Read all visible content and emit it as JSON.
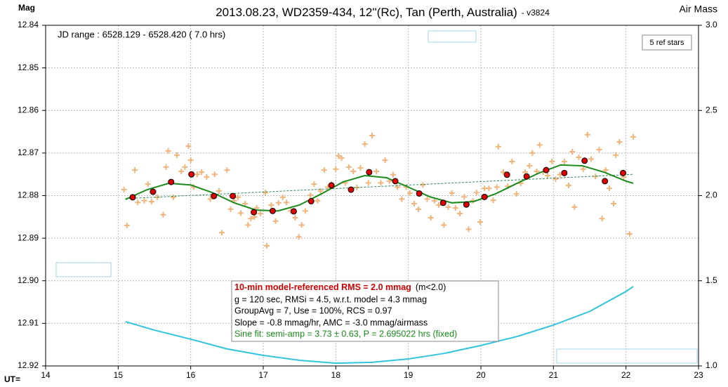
{
  "chart_data": {
    "type": "scatter",
    "title": "2013.08.23, WD2359-434, 12''(Rc), Tan (Perth, Australia)",
    "subtitle": "- v3824",
    "y_label": "Mag",
    "y2_label": "Air Mass",
    "x_label": "UT=",
    "xlim": [
      14,
      23
    ],
    "xticks": [
      14,
      15,
      16,
      17,
      18,
      19,
      20,
      21,
      22,
      23
    ],
    "ylim": [
      12.84,
      12.92
    ],
    "y_inverted": true,
    "yticks": [
      12.84,
      12.85,
      12.86,
      12.87,
      12.88,
      12.89,
      {
        "value": 12.9,
        "label": "12.90"
      },
      12.91,
      12.92
    ],
    "y2lim": [
      1,
      3
    ],
    "y2ticks": [
      {
        "value": 3,
        "label": "3.0"
      },
      2.5,
      {
        "value": 2,
        "label": "2.0"
      },
      1.5,
      {
        "value": 1,
        "label": "1.0"
      }
    ],
    "grid": true,
    "annotations": {
      "jd_range": "JD range : 6528.129 - 6528.420 ( 7.0 hrs)",
      "ref_stars": "5 ref stars",
      "stats_headline": "10-min model-referenced RMS = 2.0 mmag",
      "stats_note": "(m<2.0)",
      "stats_lines": [
        "g = 120 sec, RMSi = 4.5, w.r.t. model = 4.3 mmag",
        "GroupAvg = 7, Use = 100%, RCS = 0.97",
        "Slope = -0.8 mmag/hr, AMC = -3.0 mmag/airmass"
      ],
      "fit_line": "Sine fit: semi-amp = 3.73 ± 0.63, P = 2.695022 hrs (fixed)"
    },
    "series": [
      {
        "style": "plus",
        "color": "#f2b47a",
        "x": [
          15.08,
          15.12,
          15.23,
          15.27,
          15.36,
          15.41,
          15.46,
          15.54,
          15.62,
          15.66,
          15.69,
          15.76,
          15.81,
          15.87,
          15.92,
          15.97,
          16.0,
          16.04,
          16.09,
          16.15,
          16.22,
          16.27,
          16.33,
          16.39,
          16.43,
          16.5,
          16.55,
          16.6,
          16.65,
          16.69,
          16.75,
          16.79,
          16.83,
          16.88,
          16.91,
          16.96,
          17.03,
          17.05,
          17.11,
          17.17,
          17.21,
          17.27,
          17.32,
          17.38,
          17.44,
          17.49,
          17.53,
          17.58,
          17.65,
          17.7,
          17.75,
          17.79,
          17.84,
          17.89,
          17.94,
          18.0,
          18.04,
          18.08,
          18.13,
          18.18,
          18.24,
          18.29,
          18.34,
          18.4,
          18.45,
          18.5,
          18.56,
          18.62,
          18.68,
          18.74,
          18.79,
          18.85,
          18.91,
          18.97,
          19.02,
          19.08,
          19.14,
          19.2,
          19.26,
          19.31,
          19.36,
          19.42,
          19.49,
          19.55,
          19.6,
          19.65,
          19.71,
          19.77,
          19.83,
          19.89,
          19.94,
          19.99,
          20.05,
          20.11,
          20.17,
          20.22,
          20.24,
          20.31,
          20.37,
          20.43,
          20.49,
          20.55,
          20.61,
          20.67,
          20.71,
          20.77,
          20.81,
          20.86,
          20.92,
          20.98,
          21.03,
          21.09,
          21.15,
          21.21,
          21.26,
          21.29,
          21.35,
          21.41,
          21.47,
          21.52,
          21.58,
          21.63,
          21.67,
          21.72,
          21.77,
          21.83,
          21.86,
          21.91,
          21.97,
          22.05,
          22.1
        ],
        "values": [
          12.8786,
          12.887,
          12.874,
          12.8816,
          12.8812,
          12.8773,
          12.8814,
          12.8804,
          12.8845,
          12.8733,
          12.8695,
          12.8804,
          12.8705,
          12.8743,
          12.8733,
          12.8684,
          12.8717,
          12.878,
          12.875,
          12.8745,
          12.8756,
          12.8808,
          12.875,
          12.8789,
          12.8887,
          12.874,
          12.8832,
          12.8812,
          12.8804,
          12.8841,
          12.8819,
          12.8869,
          12.8854,
          12.885,
          12.8829,
          12.8842,
          12.8793,
          12.8918,
          12.8822,
          12.886,
          12.8817,
          12.8804,
          12.8816,
          12.8836,
          12.8852,
          12.8897,
          12.8869,
          12.8836,
          12.8799,
          12.8773,
          12.8812,
          12.8789,
          12.874,
          12.878,
          12.8773,
          12.8738,
          12.8707,
          12.8712,
          12.877,
          12.8733,
          12.8743,
          12.8781,
          12.8735,
          12.8679,
          12.877,
          12.8659,
          12.8743,
          12.877,
          12.8717,
          12.8766,
          12.8751,
          12.878,
          12.8808,
          12.878,
          12.8794,
          12.8819,
          12.8832,
          12.8775,
          12.8808,
          12.8852,
          12.8812,
          12.8822,
          12.8869,
          12.8827,
          12.8794,
          12.8829,
          12.8842,
          12.8803,
          12.8879,
          12.8812,
          12.8793,
          12.8862,
          12.8783,
          12.8783,
          12.8811,
          12.878,
          12.8685,
          12.8745,
          12.8778,
          12.872,
          12.8796,
          12.8771,
          12.8745,
          12.873,
          12.87,
          12.8743,
          12.8681,
          12.8745,
          12.8753,
          12.872,
          12.8761,
          12.8751,
          12.872,
          12.8776,
          12.8697,
          12.8827,
          12.871,
          12.8738,
          12.8657,
          12.8714,
          12.8755,
          12.8692,
          12.8854,
          12.874,
          12.8783,
          12.8819,
          12.8705,
          12.8674,
          12.8756,
          12.889,
          12.8662
        ]
      },
      {
        "style": "dashed",
        "color": "#2e8b57",
        "x": [
          15.1,
          22.1
        ],
        "values": [
          12.8807,
          12.875
        ]
      },
      {
        "style": "line",
        "color": "#1a8a1a",
        "x": [
          15.1,
          15.4,
          15.7,
          16.0,
          16.3,
          16.6,
          16.9,
          17.2,
          17.5,
          17.8,
          18.1,
          18.4,
          18.7,
          19.0,
          19.3,
          19.6,
          19.9,
          20.2,
          20.5,
          20.8,
          21.1,
          21.4,
          21.7,
          22.0,
          22.1
        ],
        "values": [
          12.8809,
          12.8786,
          12.8771,
          12.8775,
          12.8793,
          12.8817,
          12.8834,
          12.8836,
          12.8822,
          12.8796,
          12.8768,
          12.8753,
          12.8758,
          12.878,
          12.8803,
          12.8817,
          12.8814,
          12.8796,
          12.8771,
          12.8747,
          12.8728,
          12.873,
          12.8745,
          12.8766,
          12.8771
        ]
      },
      {
        "style": "circle",
        "color": "#dd0000",
        "x": [
          15.2,
          15.48,
          15.73,
          16.01,
          16.32,
          16.58,
          16.87,
          17.13,
          17.42,
          17.66,
          17.94,
          18.21,
          18.46,
          18.82,
          19.15,
          19.48,
          19.8,
          20.05,
          20.36,
          20.63,
          20.9,
          21.15,
          21.43,
          21.71,
          21.96
        ],
        "values": [
          12.8804,
          12.8791,
          12.8768,
          12.875,
          12.8801,
          12.8801,
          12.8839,
          12.8836,
          12.8837,
          12.8813,
          12.8776,
          12.8786,
          12.8745,
          12.8766,
          12.8795,
          12.8817,
          12.8821,
          12.8803,
          12.8751,
          12.8755,
          12.874,
          12.8747,
          12.8718,
          12.8766,
          12.8747
        ]
      },
      {
        "style": "line",
        "color": "#33c4dd",
        "axis": "y2",
        "x": [
          15.1,
          15.5,
          16.0,
          16.5,
          17.0,
          17.5,
          18.0,
          18.5,
          19.0,
          19.5,
          20.0,
          20.5,
          21.0,
          21.5,
          22.0,
          22.1
        ],
        "values": [
          1.26,
          1.21,
          1.157,
          1.1,
          1.062,
          1.033,
          1.016,
          1.021,
          1.041,
          1.074,
          1.12,
          1.173,
          1.24,
          1.32,
          1.437,
          1.466
        ]
      }
    ]
  }
}
